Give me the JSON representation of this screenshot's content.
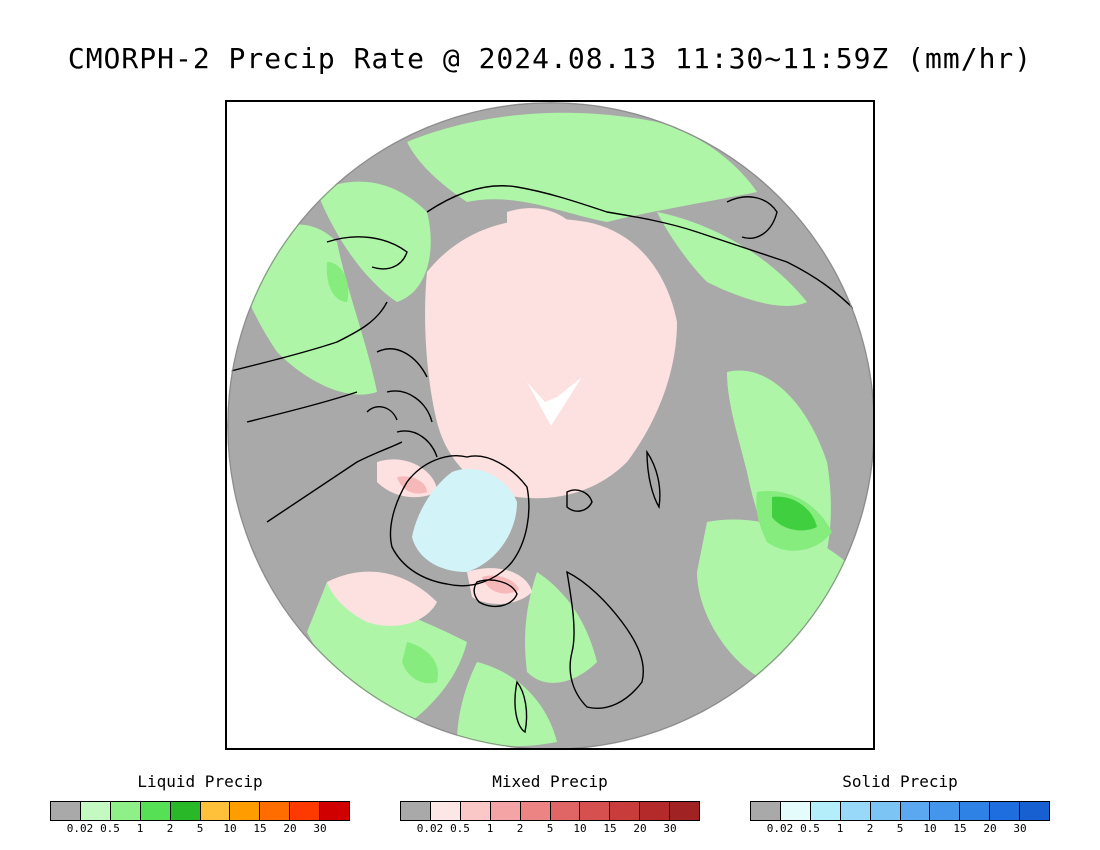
{
  "title": "CMORPH-2 Precip Rate @ 2024.08.13 11:30~11:59Z (mm/hr)",
  "map": {
    "colors": {
      "background": "#a9a9a9",
      "outside": "#ffffff",
      "coastline": "#000000",
      "liquid_light": "#aef5a8",
      "liquid_mid": "#86ec7d",
      "liquid_strong": "#3fcf3f",
      "mixed_light": "#fde0e0",
      "mixed_mid": "#f6b8b8",
      "solid_light": "#d2f4f8",
      "pole_gap": "#ffffff"
    }
  },
  "legends": [
    {
      "title": "Liquid Precip",
      "colors": [
        "#a9a9a9",
        "#c4fac1",
        "#8ff087",
        "#55e055",
        "#28b828",
        "#ffc03a",
        "#ff9c00",
        "#ff6c00",
        "#ff3a00",
        "#d10000"
      ],
      "ticks": [
        "0.02",
        "0.5",
        "1",
        "2",
        "5",
        "10",
        "15",
        "20",
        "30"
      ]
    },
    {
      "title": "Mixed Precip",
      "colors": [
        "#a9a9a9",
        "#fde6e6",
        "#fbc8c8",
        "#f4a4a4",
        "#ec8484",
        "#e06666",
        "#d65050",
        "#c83c3c",
        "#b42a2a",
        "#a02222"
      ],
      "ticks": [
        "0.02",
        "0.5",
        "1",
        "2",
        "5",
        "10",
        "15",
        "20",
        "30"
      ]
    },
    {
      "title": "Solid Precip",
      "colors": [
        "#a9a9a9",
        "#e4fcfc",
        "#b4eefa",
        "#98d8f8",
        "#7cc4f4",
        "#5ca8f0",
        "#4496ec",
        "#2e82e6",
        "#1e6ee0",
        "#1660d2"
      ],
      "ticks": [
        "0.02",
        "0.5",
        "1",
        "2",
        "5",
        "10",
        "15",
        "20",
        "30"
      ]
    }
  ]
}
